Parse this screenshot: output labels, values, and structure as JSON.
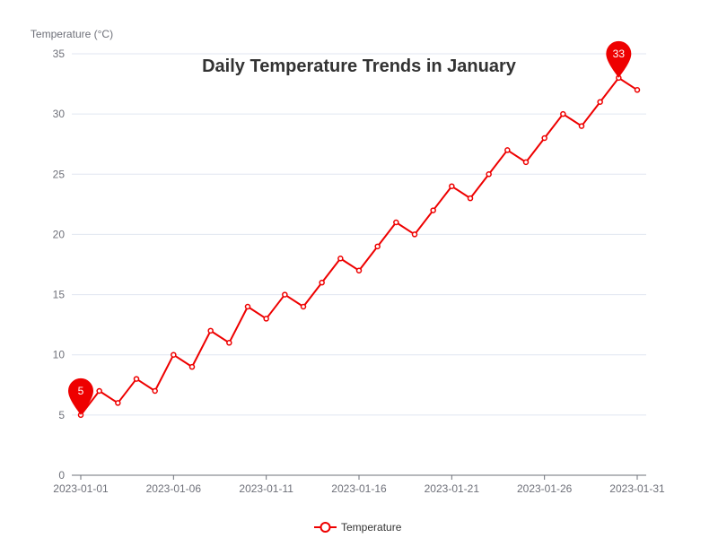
{
  "chart_data": {
    "type": "line",
    "title": "Daily Temperature Trends in January",
    "ylabel": "Temperature (°C)",
    "xlabel": "",
    "ylim": [
      0,
      35
    ],
    "yticks": [
      0,
      5,
      10,
      15,
      20,
      25,
      30,
      35
    ],
    "x_start": "2023-01-01",
    "x_end": "2023-01-31",
    "xticks": [
      "2023-01-01",
      "2023-01-06",
      "2023-01-11",
      "2023-01-16",
      "2023-01-21",
      "2023-01-26",
      "2023-01-31"
    ],
    "grid": true,
    "legend_position": "bottom-center",
    "series": [
      {
        "name": "Temperature",
        "color": "#ee0000",
        "x": [
          "2023-01-01",
          "2023-01-02",
          "2023-01-03",
          "2023-01-04",
          "2023-01-05",
          "2023-01-06",
          "2023-01-07",
          "2023-01-08",
          "2023-01-09",
          "2023-01-10",
          "2023-01-11",
          "2023-01-12",
          "2023-01-13",
          "2023-01-14",
          "2023-01-15",
          "2023-01-16",
          "2023-01-17",
          "2023-01-18",
          "2023-01-19",
          "2023-01-20",
          "2023-01-21",
          "2023-01-22",
          "2023-01-23",
          "2023-01-24",
          "2023-01-25",
          "2023-01-26",
          "2023-01-27",
          "2023-01-28",
          "2023-01-29",
          "2023-01-30",
          "2023-01-31"
        ],
        "values": [
          5,
          7,
          6,
          8,
          7,
          10,
          9,
          12,
          11,
          14,
          13,
          15,
          14,
          16,
          18,
          17,
          19,
          21,
          20,
          22,
          24,
          23,
          25,
          27,
          26,
          28,
          30,
          29,
          31,
          33,
          32
        ]
      }
    ],
    "markers": [
      {
        "type": "min",
        "x": "2023-01-01",
        "value": 5,
        "label": "5"
      },
      {
        "type": "max",
        "x": "2023-01-30",
        "value": 33,
        "label": "33"
      }
    ]
  }
}
